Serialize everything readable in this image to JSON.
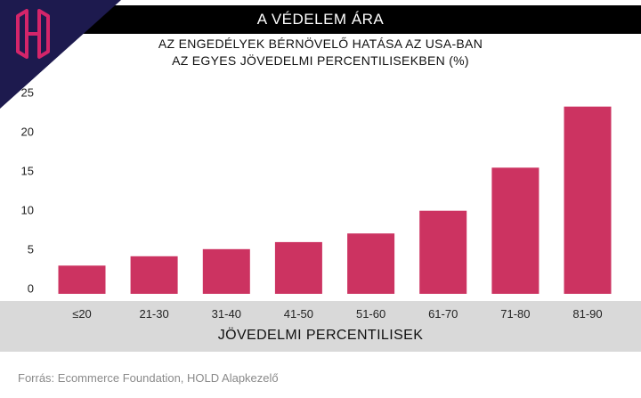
{
  "header": {
    "title": "A VÉDELEM ÁRA"
  },
  "logo": {
    "letter": "H",
    "colors": {
      "background": "#1d1a4e",
      "accent": "#d4256a"
    }
  },
  "subtitle": {
    "line1": "AZ ENGEDÉLYEK BÉRNÖVELŐ HATÁSA AZ USA-BAN",
    "line2": "AZ EGYES JÖVEDELMI PERCENTILISEKBEN (%)"
  },
  "source": "Forrás: Ecommerce Foundation, HOLD Alapkezelő",
  "chart_data": {
    "type": "bar",
    "title": "AZ ENGEDÉLYEK BÉRNÖVELŐ HATÁSA AZ USA-BAN AZ EGYES JÖVEDELMI PERCENTILISEKBEN (%)",
    "xlabel": "JÖVEDELMI PERCENTILISEK",
    "ylabel": "",
    "categories": [
      "≤20",
      "21-30",
      "31-40",
      "41-50",
      "51-60",
      "61-70",
      "71-80",
      "81-90"
    ],
    "values": [
      3.6,
      4.8,
      5.7,
      6.6,
      7.7,
      10.6,
      16.1,
      23.9
    ],
    "ylim": [
      0,
      25
    ],
    "yticks": [
      0,
      5,
      10,
      15,
      20,
      25
    ],
    "grid": false,
    "bar_color": "#cc3361"
  }
}
